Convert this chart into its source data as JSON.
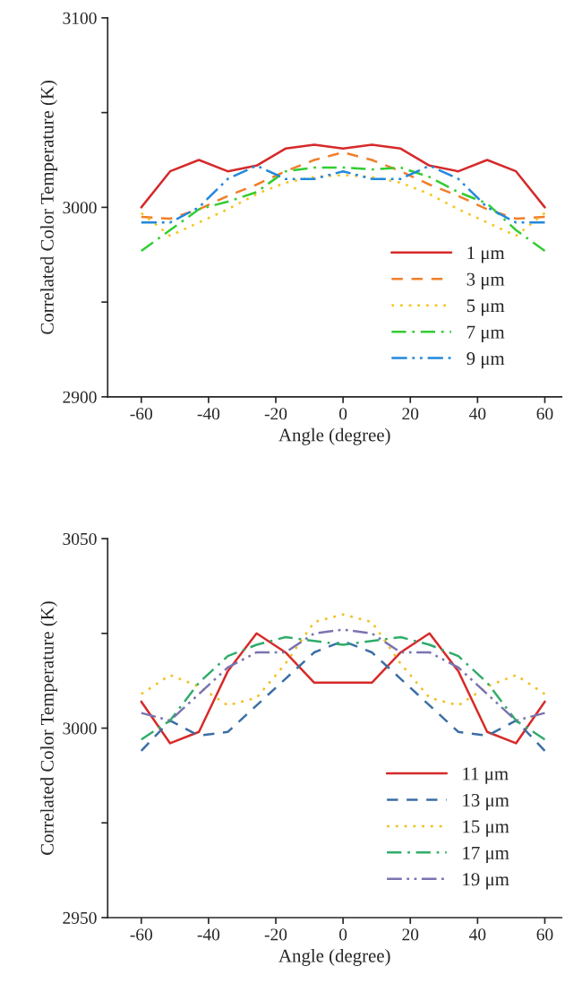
{
  "chart_data": [
    {
      "type": "line",
      "xlabel": "Angle (degree)",
      "ylabel": "Correlated Color Temperature (K)",
      "x": [
        -60,
        -51.43,
        -42.86,
        -34.29,
        -25.71,
        -17.14,
        -8.57,
        0,
        8.57,
        17.14,
        25.71,
        34.29,
        42.86,
        51.43,
        60
      ],
      "xlim": [
        -70,
        65
      ],
      "xticks": [
        -60,
        -40,
        -20,
        0,
        20,
        40,
        60
      ],
      "ylim": [
        2900,
        3100
      ],
      "yticks": [
        2900,
        {
          "value": 2950,
          "label": null
        },
        3000,
        {
          "value": 3050,
          "label": null
        },
        3100
      ],
      "grid": false,
      "legend": "bottom",
      "marker": "none",
      "series": [
        {
          "name": "1 μm",
          "color": "#d62a2a",
          "line_style": "solid",
          "values": [
            3000,
            3019,
            3025,
            3019,
            3022,
            3031,
            3033,
            3031,
            3033,
            3031,
            3022,
            3019,
            3025,
            3019,
            3000
          ]
        },
        {
          "name": "3 μm",
          "color": "#f07f2a",
          "line_style": "dashed",
          "values": [
            2995,
            2994,
            2999,
            3006,
            3012,
            3019,
            3025,
            3029,
            3025,
            3019,
            3012,
            3006,
            2999,
            2994,
            2995
          ]
        },
        {
          "name": "5 μm",
          "color": "#f5c518",
          "line_style": "dotted",
          "values": [
            2997,
            2985,
            2992,
            2999,
            3007,
            3013,
            3016,
            3017,
            3016,
            3013,
            3007,
            2999,
            2992,
            2985,
            2997
          ]
        },
        {
          "name": "7 μm",
          "color": "#33cc33",
          "line_style": "dashdot",
          "values": [
            2977,
            2988,
            2999,
            3003,
            3008,
            3019,
            3021,
            3021,
            3020,
            3021,
            3016,
            3008,
            3002,
            2988,
            2977
          ]
        },
        {
          "name": "9 μm",
          "color": "#2288dd",
          "line_style": "dashdotdot",
          "values": [
            2992,
            2992,
            3000,
            3015,
            3022,
            3015,
            3015,
            3019,
            3015,
            3015,
            3022,
            3015,
            3000,
            2992,
            2992
          ]
        }
      ]
    },
    {
      "type": "line",
      "xlabel": "Angle (degree)",
      "ylabel": "Correlated Color Temperature (K)",
      "x": [
        -60,
        -51.43,
        -42.86,
        -34.29,
        -25.71,
        -17.14,
        -8.57,
        0,
        8.57,
        17.14,
        25.71,
        34.29,
        42.86,
        51.43,
        60
      ],
      "xlim": [
        -70,
        65
      ],
      "xticks": [
        -60,
        -40,
        -20,
        0,
        20,
        40,
        60
      ],
      "ylim": [
        2950,
        3050
      ],
      "yticks": [
        2950,
        {
          "value": 2975,
          "label": null
        },
        3000,
        {
          "value": 3025,
          "label": null
        },
        3050
      ],
      "grid": false,
      "legend": "bottom",
      "marker": "none",
      "series": [
        {
          "name": "11 μm",
          "color": "#d62a2a",
          "line_style": "solid",
          "values": [
            3007,
            2996,
            2999,
            3015,
            3025,
            3020,
            3012,
            3012,
            3012,
            3020,
            3025,
            3015,
            2999,
            2996,
            3007
          ]
        },
        {
          "name": "13 μm",
          "color": "#3b6ea5",
          "line_style": "dashed",
          "values": [
            2994,
            3002,
            2998,
            2999,
            3006,
            3013,
            3020,
            3023,
            3020,
            3013,
            3006,
            2999,
            2998,
            3002,
            2994
          ]
        },
        {
          "name": "15 μm",
          "color": "#f0c020",
          "line_style": "dotted",
          "values": [
            3009,
            3014,
            3011,
            3006,
            3008,
            3017,
            3028,
            3030,
            3028,
            3017,
            3008,
            3006,
            3011,
            3014,
            3009
          ]
        },
        {
          "name": "17 μm",
          "color": "#2fad6a",
          "line_style": "dashdot",
          "values": [
            2997,
            3002,
            3012,
            3019,
            3022,
            3024,
            3023,
            3022,
            3023,
            3024,
            3022,
            3019,
            3012,
            3002,
            2997
          ]
        },
        {
          "name": "19 μm",
          "color": "#7a74b0",
          "line_style": "dashdotdot",
          "values": [
            3004,
            3002,
            3009,
            3016,
            3020,
            3020,
            3025,
            3026,
            3025,
            3020,
            3020,
            3016,
            3009,
            3002,
            3004
          ]
        }
      ]
    }
  ]
}
